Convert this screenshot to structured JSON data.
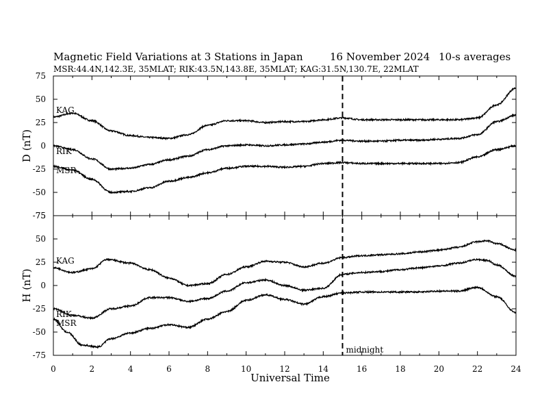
{
  "chart_data": {
    "type": "line",
    "title": "Magnetic Field Variations at 3 Stations in Japan",
    "date": "16 November 2024",
    "averaging": "10-s averages",
    "subtitle": "MSR:44.4N,142.3E, 35MLAT;  RIK:43.5N,143.8E, 35MLAT;  KAG:31.5N,130.7E, 22MLAT",
    "xlabel": "Universal Time",
    "xlim": [
      0,
      24
    ],
    "xticks": [
      0,
      2,
      4,
      6,
      8,
      10,
      12,
      14,
      16,
      18,
      20,
      22,
      24
    ],
    "vertical_marker": {
      "x": 15,
      "label": "midnight"
    },
    "panels": [
      {
        "ylabel": "D (nT)",
        "ylim": [
          -75,
          75
        ],
        "yticks": [
          -75,
          -50,
          -25,
          0,
          25,
          50,
          75
        ],
        "series": [
          {
            "name": "KAG",
            "x": [
              0,
              1,
              2,
              3,
              4,
              5,
              6,
              7,
              8,
              9,
              10,
              11,
              12,
              13,
              14,
              15,
              16,
              17,
              18,
              19,
              20,
              21,
              22,
              23,
              24
            ],
            "values": [
              31,
              35,
              27,
              16,
              11,
              9,
              8,
              12,
              22,
              27,
              27,
              25,
              26,
              26,
              28,
              30,
              28,
              28,
              28,
              28,
              28,
              28,
              30,
              44,
              62
            ]
          },
          {
            "name": "RIK",
            "x": [
              0,
              1,
              2,
              3,
              4,
              5,
              6,
              7,
              8,
              9,
              10,
              11,
              12,
              13,
              14,
              15,
              16,
              17,
              18,
              19,
              20,
              21,
              22,
              23,
              24
            ],
            "values": [
              0,
              -4,
              -14,
              -25,
              -24,
              -20,
              -15,
              -11,
              -4,
              0,
              1,
              0,
              1,
              2,
              4,
              6,
              5,
              5,
              6,
              6,
              7,
              8,
              12,
              26,
              33
            ]
          },
          {
            "name": "MSR",
            "x": [
              0,
              1,
              2,
              3,
              4,
              5,
              6,
              7,
              8,
              9,
              10,
              11,
              12,
              13,
              14,
              15,
              16,
              17,
              18,
              19,
              20,
              21,
              22,
              23,
              24
            ],
            "values": [
              -22,
              -26,
              -36,
              -50,
              -49,
              -45,
              -38,
              -34,
              -29,
              -24,
              -22,
              -22,
              -23,
              -22,
              -19,
              -18,
              -19,
              -19,
              -19,
              -19,
              -19,
              -18,
              -12,
              -4,
              0
            ]
          }
        ]
      },
      {
        "ylabel": "H (nT)",
        "ylim": [
          -75,
          75
        ],
        "yticks": [
          -75,
          -50,
          -25,
          0,
          25,
          50,
          75
        ],
        "series": [
          {
            "name": "KAG",
            "x": [
              0,
              1,
              2,
              2.8,
              4,
              5,
              6,
              7,
              8,
              9,
              10,
              11,
              12,
              13,
              14,
              15,
              16,
              17,
              18,
              19,
              20,
              21,
              22,
              22.5,
              23,
              24
            ],
            "values": [
              19,
              14,
              18,
              28,
              24,
              17,
              8,
              0,
              2,
              12,
              20,
              26,
              25,
              20,
              24,
              30,
              32,
              33,
              34,
              36,
              38,
              41,
              47,
              48,
              45,
              38
            ]
          },
          {
            "name": "RIK",
            "x": [
              0,
              1,
              2,
              3,
              4,
              5,
              6,
              7,
              8,
              9,
              10,
              11,
              12,
              13,
              14,
              15,
              16,
              17,
              18,
              19,
              20,
              21,
              22,
              22.5,
              23,
              24
            ],
            "values": [
              -25,
              -32,
              -35,
              -25,
              -22,
              -13,
              -13,
              -17,
              -14,
              -6,
              3,
              6,
              0,
              -5,
              -3,
              12,
              14,
              15,
              17,
              19,
              21,
              24,
              28,
              27,
              22,
              10
            ]
          },
          {
            "name": "MSR",
            "x": [
              0,
              0.7,
              1.5,
              2.3,
              3,
              4,
              5,
              6,
              7,
              8,
              9,
              10,
              11,
              12,
              13,
              14,
              15,
              16,
              17,
              18,
              19,
              20,
              21,
              22,
              23,
              24
            ],
            "values": [
              -36,
              -50,
              -64,
              -66,
              -57,
              -51,
              -46,
              -42,
              -45,
              -36,
              -28,
              -16,
              -10,
              -15,
              -20,
              -12,
              -8,
              -7,
              -7,
              -7,
              -7,
              -6,
              -6,
              -2,
              -12,
              -29
            ]
          }
        ]
      }
    ]
  }
}
